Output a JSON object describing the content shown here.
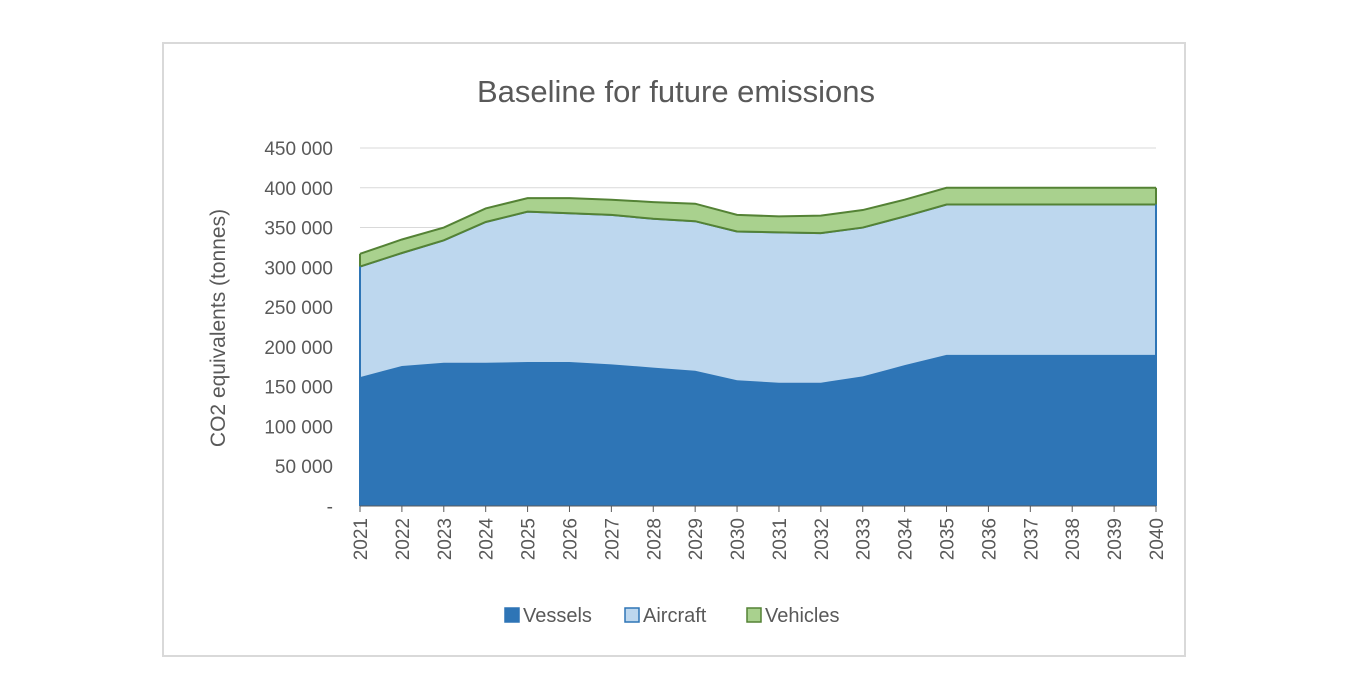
{
  "chart_data": {
    "type": "area",
    "stacked": true,
    "title": "Baseline for future emissions",
    "xlabel": "",
    "ylabel": "CO2 equivalents (tonnes)",
    "ylim": [
      0,
      450000
    ],
    "ytick_labels": [
      "-",
      "50 000",
      "100 000",
      "150 000",
      "200 000",
      "250 000",
      "300 000",
      "350 000",
      "400 000",
      "450 000"
    ],
    "categories": [
      "2021",
      "2022",
      "2023",
      "2024",
      "2025",
      "2026",
      "2027",
      "2028",
      "2029",
      "2030",
      "2031",
      "2032",
      "2033",
      "2034",
      "2035",
      "2036",
      "2037",
      "2038",
      "2039",
      "2040"
    ],
    "series": [
      {
        "name": "Vessels",
        "color": "#2e75b6",
        "values": [
          162000,
          176000,
          180000,
          180000,
          181000,
          181000,
          178000,
          174000,
          170000,
          158000,
          155000,
          155000,
          163000,
          177000,
          190000,
          190000,
          190000,
          190000,
          190000,
          190000
        ]
      },
      {
        "name": "Aircraft",
        "color": "#bdd7ee",
        "values": [
          139000,
          142000,
          154000,
          177000,
          189000,
          187000,
          188000,
          187000,
          188000,
          187000,
          189000,
          188000,
          187000,
          187000,
          189000,
          189000,
          189000,
          189000,
          189000,
          189000
        ]
      },
      {
        "name": "Vehicles",
        "color": "#a9d18e",
        "values": [
          16000,
          17000,
          16000,
          17000,
          17000,
          19000,
          19000,
          21000,
          22000,
          21000,
          20000,
          22000,
          22000,
          21000,
          21000,
          21000,
          21000,
          21000,
          21000,
          21000
        ]
      }
    ],
    "legend_position": "bottom",
    "grid": true
  }
}
